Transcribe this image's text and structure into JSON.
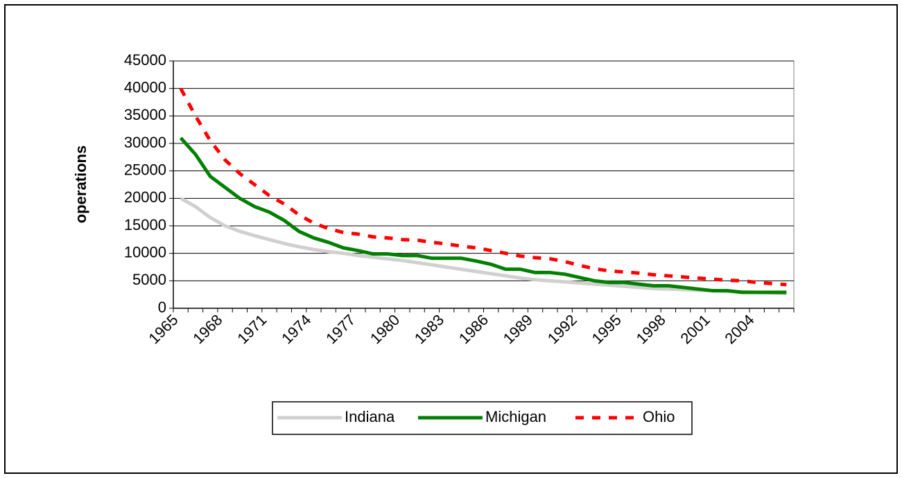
{
  "chart_data": {
    "type": "line",
    "y_label": "operations",
    "categories": [
      "1965",
      null,
      null,
      "1968",
      null,
      null,
      "1971",
      null,
      null,
      "1974",
      null,
      null,
      "1977",
      null,
      null,
      "1980",
      null,
      null,
      "1983",
      null,
      null,
      "1986",
      null,
      null,
      "1989",
      null,
      null,
      "1992",
      null,
      null,
      "1995",
      null,
      null,
      "1998",
      null,
      null,
      "2001",
      null,
      null,
      "2004",
      null,
      null
    ],
    "series": [
      {
        "name": "Indiana",
        "color": "#d0d0d0",
        "dashed": false,
        "values": [
          20000,
          18500,
          16500,
          15000,
          14000,
          13200,
          12500,
          11800,
          11200,
          10700,
          10300,
          10000,
          9600,
          9300,
          9000,
          8700,
          8300,
          7900,
          7500,
          7100,
          6700,
          6300,
          5900,
          5500,
          5200,
          5000,
          4800,
          4600,
          4400,
          4200,
          4000,
          3800,
          3600,
          3500,
          3400,
          3300,
          3200,
          3100,
          3000,
          2900,
          2800,
          2700
        ]
      },
      {
        "name": "Michigan",
        "color": "#008000",
        "dashed": false,
        "values": [
          31000,
          28000,
          24000,
          22000,
          20000,
          18500,
          17500,
          16000,
          14000,
          12800,
          12000,
          11000,
          10500,
          9900,
          9900,
          9600,
          9600,
          9100,
          9100,
          9100,
          8600,
          8000,
          7100,
          7100,
          6500,
          6500,
          6200,
          5600,
          5000,
          4700,
          4700,
          4400,
          4100,
          4100,
          3800,
          3500,
          3200,
          3200,
          2900,
          2900,
          2900,
          2900
        ]
      },
      {
        "name": "Ohio",
        "color": "#ff0000",
        "dashed": true,
        "values": [
          40000,
          35000,
          30500,
          27000,
          24500,
          22500,
          20500,
          19000,
          17000,
          15500,
          14500,
          13800,
          13500,
          13000,
          12800,
          12500,
          12400,
          12000,
          11700,
          11300,
          11000,
          10500,
          10000,
          9500,
          9200,
          9000,
          8500,
          7800,
          7200,
          6800,
          6600,
          6400,
          6100,
          5900,
          5700,
          5500,
          5300,
          5100,
          5000,
          4700,
          4500,
          4300
        ]
      }
    ],
    "ylim": [
      0,
      45000
    ],
    "yticks": [
      0,
      5000,
      10000,
      15000,
      20000,
      25000,
      30000,
      35000,
      40000,
      45000
    ],
    "grid": true,
    "legend": "bottom"
  }
}
